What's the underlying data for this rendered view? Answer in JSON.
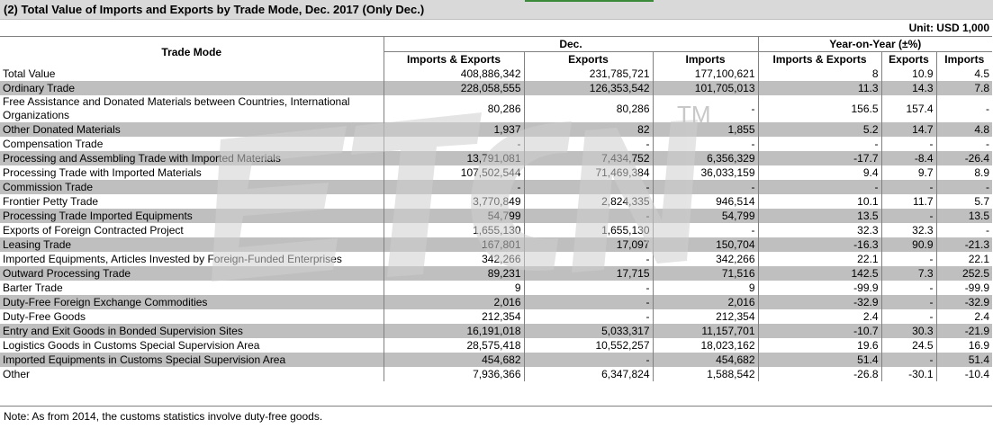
{
  "title": "(2) Total Value of Imports and Exports by Trade Mode, Dec. 2017 (Only Dec.)",
  "unit": "Unit: USD 1,000",
  "header": {
    "trade_mode": "Trade Mode",
    "dec": "Dec.",
    "yoy": "Year-on-Year (±%)",
    "ie": "Imports & Exports",
    "exports": "Exports",
    "imports": "Imports",
    "yoy_ie": "Imports & Exports",
    "yoy_exports": "Exports",
    "yoy_imports": "Imports"
  },
  "rows": [
    {
      "mode": "Total Value",
      "ie": "408,886,342",
      "ex": "231,785,721",
      "im": "177,100,621",
      "yie": "8",
      "yex": "10.9",
      "yim": "4.5"
    },
    {
      "mode": "Ordinary Trade",
      "ie": "228,058,555",
      "ex": "126,353,542",
      "im": "101,705,013",
      "yie": "11.3",
      "yex": "14.3",
      "yim": "7.8"
    },
    {
      "mode": "Free Assistance and Donated Materials between Countries, International Organizations",
      "ie": "80,286",
      "ex": "80,286",
      "im": "-",
      "yie": "156.5",
      "yex": "157.4",
      "yim": "-"
    },
    {
      "mode": "Other Donated Materials",
      "ie": "1,937",
      "ex": "82",
      "im": "1,855",
      "yie": "5.2",
      "yex": "14.7",
      "yim": "4.8"
    },
    {
      "mode": "Compensation Trade",
      "ie": "-",
      "ex": "-",
      "im": "-",
      "yie": "-",
      "yex": "-",
      "yim": "-"
    },
    {
      "mode": "Processing and Assembling Trade with Imported Materials",
      "ie": "13,791,081",
      "ex": "7,434,752",
      "im": "6,356,329",
      "yie": "-17.7",
      "yex": "-8.4",
      "yim": "-26.4"
    },
    {
      "mode": "Processing Trade with Imported Materials",
      "ie": "107,502,544",
      "ex": "71,469,384",
      "im": "36,033,159",
      "yie": "9.4",
      "yex": "9.7",
      "yim": "8.9"
    },
    {
      "mode": "Commission Trade",
      "ie": "-",
      "ex": "-",
      "im": "-",
      "yie": "-",
      "yex": "-",
      "yim": "-"
    },
    {
      "mode": "Frontier Petty Trade",
      "ie": "3,770,849",
      "ex": "2,824,335",
      "im": "946,514",
      "yie": "10.1",
      "yex": "11.7",
      "yim": "5.7"
    },
    {
      "mode": "Processing Trade Imported Equipments",
      "ie": "54,799",
      "ex": "-",
      "im": "54,799",
      "yie": "13.5",
      "yex": "-",
      "yim": "13.5"
    },
    {
      "mode": "Exports of Foreign Contracted Project",
      "ie": "1,655,130",
      "ex": "1,655,130",
      "im": "-",
      "yie": "32.3",
      "yex": "32.3",
      "yim": "-"
    },
    {
      "mode": "Leasing Trade",
      "ie": "167,801",
      "ex": "17,097",
      "im": "150,704",
      "yie": "-16.3",
      "yex": "90.9",
      "yim": "-21.3"
    },
    {
      "mode": "Imported Equipments, Articles Invested by Foreign-Funded Enterprises",
      "ie": "342,266",
      "ex": "-",
      "im": "342,266",
      "yie": "22.1",
      "yex": "-",
      "yim": "22.1"
    },
    {
      "mode": "Outward Processing Trade",
      "ie": "89,231",
      "ex": "17,715",
      "im": "71,516",
      "yie": "142.5",
      "yex": "7.3",
      "yim": "252.5"
    },
    {
      "mode": "Barter Trade",
      "ie": "9",
      "ex": "-",
      "im": "9",
      "yie": "-99.9",
      "yex": "-",
      "yim": "-99.9"
    },
    {
      "mode": "Duty-Free Foreign Exchange Commodities",
      "ie": "2,016",
      "ex": "-",
      "im": "2,016",
      "yie": "-32.9",
      "yex": "-",
      "yim": "-32.9"
    },
    {
      "mode": "Duty-Free Goods",
      "ie": "212,354",
      "ex": "-",
      "im": "212,354",
      "yie": "2.4",
      "yex": "-",
      "yim": "2.4"
    },
    {
      "mode": "Entry and Exit Goods in Bonded Supervision Sites",
      "ie": "16,191,018",
      "ex": "5,033,317",
      "im": "11,157,701",
      "yie": "-10.7",
      "yex": "30.3",
      "yim": "-21.9"
    },
    {
      "mode": "Logistics Goods in Customs Special Supervision Area",
      "ie": "28,575,418",
      "ex": "10,552,257",
      "im": "18,023,162",
      "yie": "19.6",
      "yex": "24.5",
      "yim": "16.9"
    },
    {
      "mode": "Imported Equipments in Customs Special Supervision Area",
      "ie": "454,682",
      "ex": "-",
      "im": "454,682",
      "yie": "51.4",
      "yex": "-",
      "yim": "51.4"
    },
    {
      "mode": "Other",
      "ie": "7,936,366",
      "ex": "6,347,824",
      "im": "1,588,542",
      "yie": "-26.8",
      "yex": "-30.1",
      "yim": "-10.4"
    }
  ],
  "note": "Note: As from 2014, the customs statistics involve duty-free goods.",
  "watermark": {
    "logo": "ETCN",
    "mark": "TM"
  },
  "colors": {
    "alt_row": "#bfbfbf",
    "title_bar": "#d9d9d9",
    "watermark": "#c8c8c8"
  }
}
